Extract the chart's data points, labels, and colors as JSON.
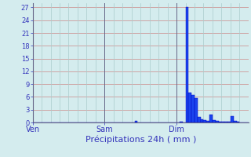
{
  "title": "Précipitations 24h ( mm )",
  "background_color": "#d4ecee",
  "bar_color": "#1a44ee",
  "bar_edge_color": "#0000bb",
  "grid_color_h": "#cc8888",
  "grid_color_v": "#aacccc",
  "text_color": "#3333bb",
  "axis_color": "#666688",
  "ylim": [
    0,
    28
  ],
  "yticks": [
    0,
    3,
    6,
    9,
    12,
    15,
    18,
    21,
    24,
    27
  ],
  "day_labels": [
    "Ven",
    "Sam",
    "Dim"
  ],
  "day_positions": [
    0,
    24,
    48
  ],
  "n_bars": 72,
  "values": [
    0,
    0,
    0,
    0,
    0,
    0,
    0,
    0,
    0,
    0,
    0,
    0,
    0,
    0,
    0,
    0,
    0,
    0,
    0,
    0,
    0,
    0,
    0,
    0,
    0,
    0,
    0,
    0,
    0,
    0,
    0,
    0,
    0,
    0,
    0.3,
    0,
    0,
    0,
    0,
    0,
    0,
    0,
    0,
    0,
    0,
    0,
    0,
    0,
    0,
    0.2,
    0,
    27.0,
    7.0,
    6.5,
    5.8,
    1.2,
    0.8,
    0.5,
    0.3,
    1.8,
    0.5,
    0.3,
    0.2,
    0.1,
    0.1,
    0.1,
    1.5,
    0.4,
    0.1,
    0,
    0,
    0
  ]
}
